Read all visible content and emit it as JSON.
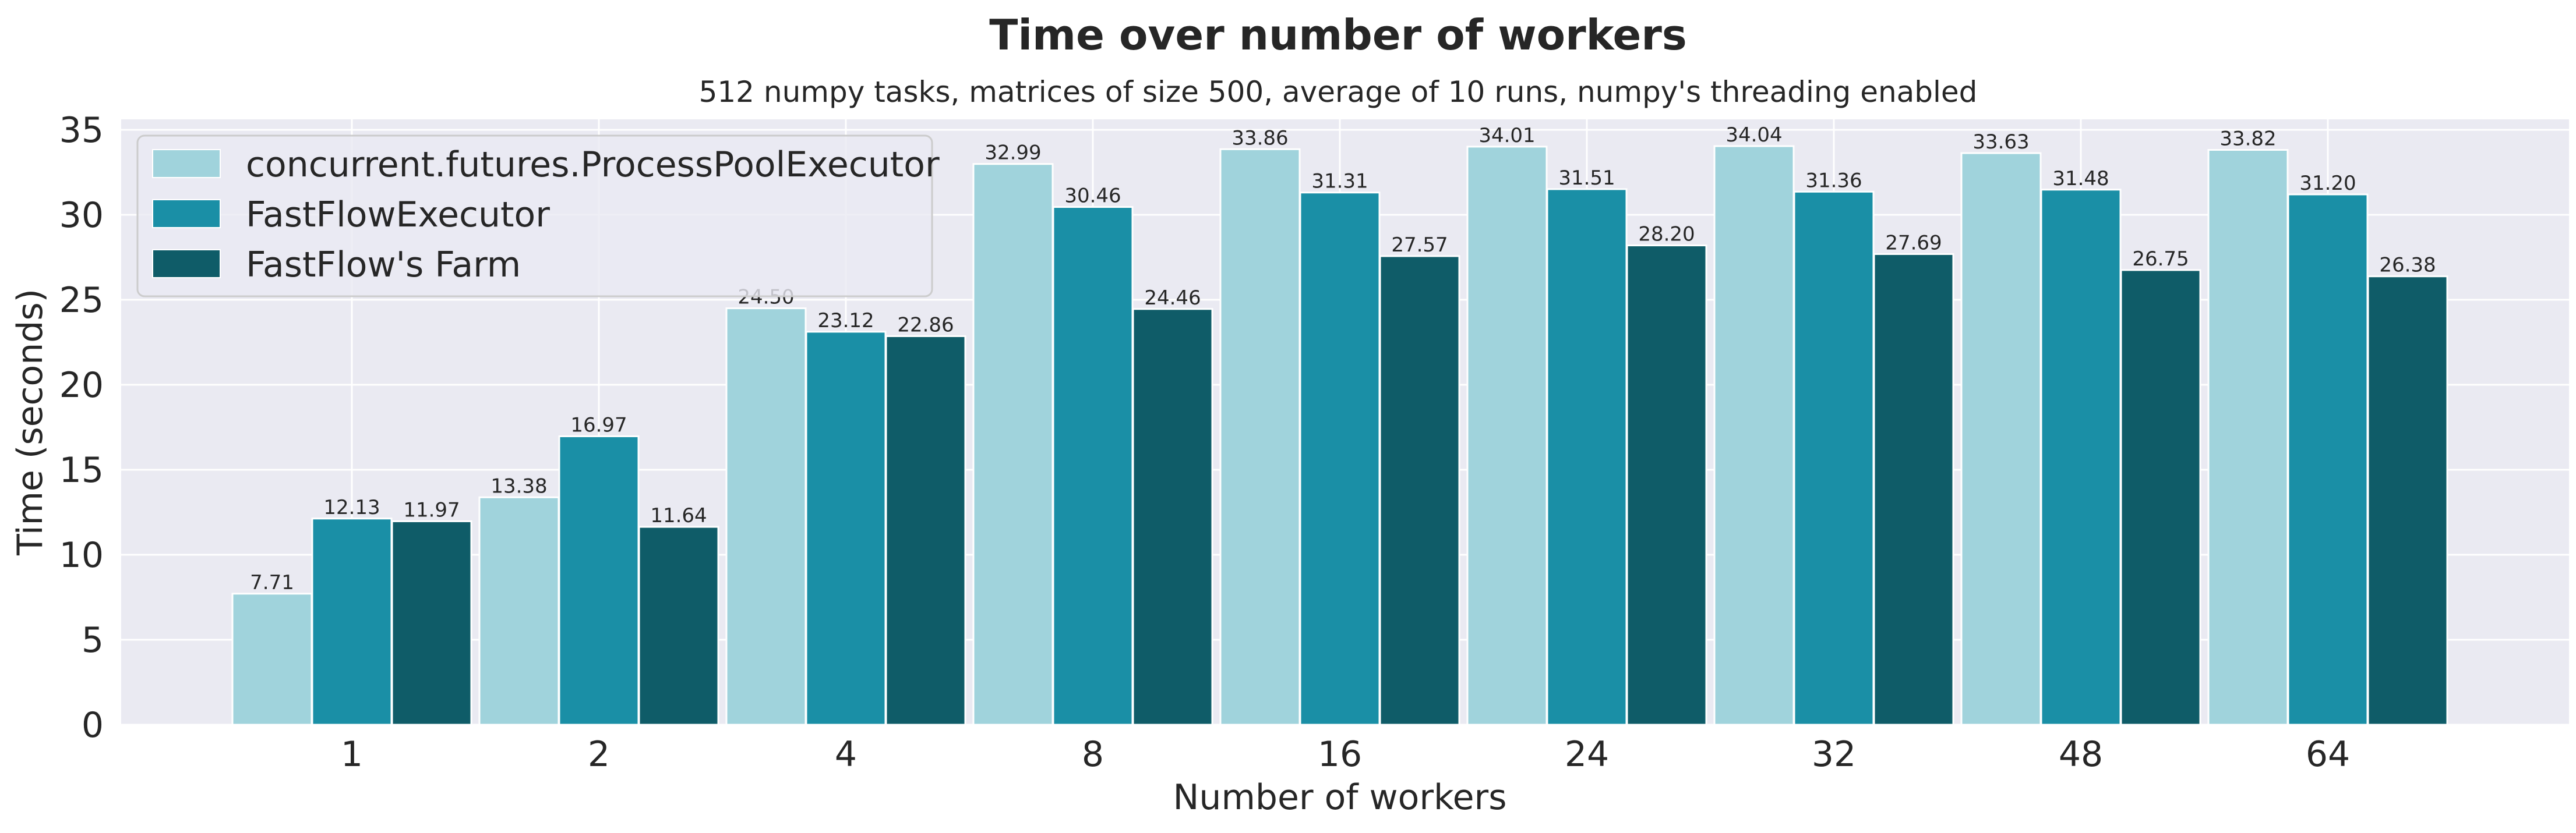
{
  "chart_data": {
    "type": "bar",
    "title": "Time over number of workers",
    "subtitle": "512 numpy tasks, matrices of size 500, average of 10 runs, numpy's threading enabled",
    "xlabel": "Number of workers",
    "ylabel": "Time (seconds)",
    "categories": [
      "1",
      "2",
      "4",
      "8",
      "16",
      "24",
      "32",
      "48",
      "64"
    ],
    "ylim": [
      0,
      35
    ],
    "yticks": [
      0,
      5,
      10,
      15,
      20,
      25,
      30,
      35
    ],
    "grid": true,
    "legend_position": "top-left",
    "series": [
      {
        "name": "concurrent.futures.ProcessPoolExecutor",
        "color": "#a0d3dc",
        "values": [
          7.71,
          13.38,
          24.5,
          32.99,
          33.86,
          34.01,
          34.04,
          33.63,
          33.82
        ],
        "labels": [
          "7.71",
          "13.38",
          "24.50",
          "32.99",
          "33.86",
          "34.01",
          "34.04",
          "33.63",
          "33.82"
        ]
      },
      {
        "name": "FastFlowExecutor",
        "color": "#1a8fa6",
        "values": [
          12.13,
          16.97,
          23.12,
          30.46,
          31.31,
          31.51,
          31.36,
          31.48,
          31.2
        ],
        "labels": [
          "12.13",
          "16.97",
          "23.12",
          "30.46",
          "31.31",
          "31.51",
          "31.36",
          "31.48",
          "31.20"
        ]
      },
      {
        "name": "FastFlow's Farm",
        "color": "#0f5c68",
        "values": [
          11.97,
          11.64,
          22.86,
          24.46,
          27.57,
          28.2,
          27.69,
          26.75,
          26.38
        ],
        "labels": [
          "11.97",
          "11.64",
          "22.86",
          "24.46",
          "27.57",
          "28.20",
          "27.69",
          "26.75",
          "26.38"
        ]
      }
    ]
  }
}
